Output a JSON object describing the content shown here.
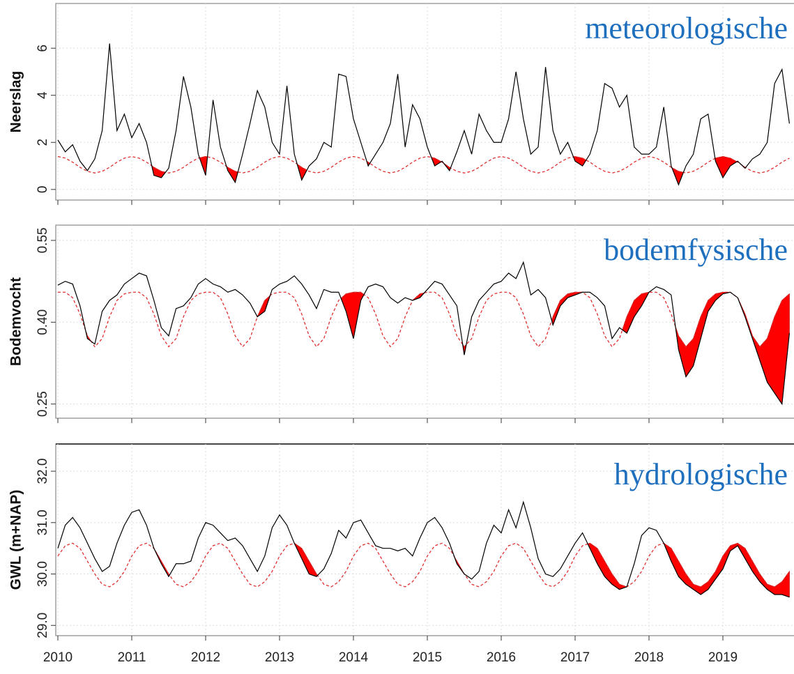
{
  "chart_data": [
    {
      "type": "line",
      "ylabel": "Neerslag",
      "annotation": "meteorologische",
      "grid": true,
      "xlim": [
        2010,
        2020
      ],
      "ylim": [
        -0.45,
        7.9
      ],
      "yticks": [
        0,
        2,
        4,
        6
      ],
      "x": [
        2010,
        2010.1,
        2010.2,
        2010.3,
        2010.4,
        2010.5,
        2010.6,
        2010.7,
        2010.8,
        2010.9,
        2011,
        2011.1,
        2011.2,
        2011.3,
        2011.4,
        2011.5,
        2011.6,
        2011.7,
        2011.8,
        2011.9,
        2012,
        2012.1,
        2012.2,
        2012.3,
        2012.4,
        2012.5,
        2012.6,
        2012.7,
        2012.8,
        2012.9,
        2013,
        2013.1,
        2013.2,
        2013.3,
        2013.4,
        2013.5,
        2013.6,
        2013.7,
        2013.8,
        2013.9,
        2014,
        2014.1,
        2014.2,
        2014.3,
        2014.4,
        2014.5,
        2014.6,
        2014.7,
        2014.8,
        2014.9,
        2015,
        2015.1,
        2015.2,
        2015.3,
        2015.4,
        2015.5,
        2015.6,
        2015.7,
        2015.8,
        2015.9,
        2016,
        2016.1,
        2016.2,
        2016.3,
        2016.4,
        2016.5,
        2016.6,
        2016.7,
        2016.8,
        2016.9,
        2017,
        2017.1,
        2017.2,
        2017.3,
        2017.4,
        2017.5,
        2017.6,
        2017.7,
        2017.8,
        2017.9,
        2018,
        2018.1,
        2018.2,
        2018.3,
        2018.4,
        2018.5,
        2018.6,
        2018.7,
        2018.8,
        2018.9,
        2019,
        2019.1,
        2019.2,
        2019.3,
        2019.4,
        2019.5,
        2019.6,
        2019.7,
        2019.8,
        2019.9
      ],
      "series": [
        {
          "color": "#000000",
          "values": [
            2.1,
            1.6,
            1.9,
            1.2,
            0.8,
            1.3,
            2.5,
            6.2,
            2.5,
            3.2,
            2.2,
            2.8,
            2.0,
            0.6,
            0.5,
            0.9,
            2.5,
            4.8,
            3.5,
            1.5,
            0.6,
            3.8,
            1.8,
            0.8,
            0.3,
            1.5,
            2.8,
            4.2,
            3.5,
            2.0,
            1.5,
            4.4,
            1.5,
            0.4,
            1.0,
            1.3,
            2.0,
            1.8,
            4.9,
            4.8,
            3.0,
            2.0,
            1.0,
            1.5,
            2.0,
            2.8,
            4.9,
            1.8,
            3.6,
            3.0,
            1.8,
            1.0,
            1.2,
            0.8,
            1.6,
            2.5,
            1.5,
            3.2,
            2.5,
            2.0,
            2.0,
            3.0,
            5.0,
            3.0,
            1.5,
            1.8,
            5.2,
            2.5,
            1.5,
            2.0,
            1.2,
            1.0,
            1.5,
            2.5,
            4.5,
            4.3,
            3.5,
            4.0,
            1.8,
            1.5,
            1.5,
            1.8,
            3.5,
            1.0,
            0.2,
            1.0,
            1.5,
            3.0,
            3.2,
            1.2,
            0.5,
            1.0,
            1.2,
            0.9,
            1.3,
            1.5,
            2.0,
            4.5,
            5.1,
            2.8
          ]
        },
        {
          "color": "#e03030",
          "dashed": true,
          "values": [
            1.4,
            1.33,
            1.16,
            0.94,
            0.77,
            0.7,
            0.77,
            0.94,
            1.16,
            1.33,
            1.4,
            1.33,
            1.16,
            0.94,
            0.77,
            0.7,
            0.77,
            0.94,
            1.16,
            1.33,
            1.4,
            1.33,
            1.16,
            0.94,
            0.77,
            0.7,
            0.77,
            0.94,
            1.16,
            1.33,
            1.4,
            1.33,
            1.16,
            0.94,
            0.77,
            0.7,
            0.77,
            0.94,
            1.16,
            1.33,
            1.4,
            1.33,
            1.16,
            0.94,
            0.77,
            0.7,
            0.77,
            0.94,
            1.16,
            1.33,
            1.4,
            1.33,
            1.16,
            0.94,
            0.77,
            0.7,
            0.77,
            0.94,
            1.16,
            1.33,
            1.4,
            1.33,
            1.16,
            0.94,
            0.77,
            0.7,
            0.77,
            0.94,
            1.16,
            1.33,
            1.4,
            1.33,
            1.16,
            0.94,
            0.77,
            0.7,
            0.77,
            0.94,
            1.16,
            1.33,
            1.4,
            1.33,
            1.16,
            0.94,
            0.77,
            0.7,
            0.77,
            0.94,
            1.16,
            1.33,
            1.4,
            1.33,
            1.16,
            0.94,
            0.77,
            0.7,
            0.77,
            0.94,
            1.16,
            1.33
          ]
        }
      ]
    },
    {
      "type": "line",
      "ylabel": "Bodemvocht",
      "annotation": "bodemfysische",
      "grid": true,
      "xlim": [
        2010,
        2020
      ],
      "ylim": [
        0.224,
        0.578
      ],
      "yticks": [
        0.25,
        {
          "value": 0.4,
          "label": "0.40"
        },
        0.55
      ],
      "x": [
        2010,
        2010.1,
        2010.2,
        2010.3,
        2010.4,
        2010.5,
        2010.6,
        2010.7,
        2010.8,
        2010.9,
        2011,
        2011.1,
        2011.2,
        2011.3,
        2011.4,
        2011.5,
        2011.6,
        2011.7,
        2011.8,
        2011.9,
        2012,
        2012.1,
        2012.2,
        2012.3,
        2012.4,
        2012.5,
        2012.6,
        2012.7,
        2012.8,
        2012.9,
        2013,
        2013.1,
        2013.2,
        2013.3,
        2013.4,
        2013.5,
        2013.6,
        2013.7,
        2013.8,
        2013.9,
        2014,
        2014.1,
        2014.2,
        2014.3,
        2014.4,
        2014.5,
        2014.6,
        2014.7,
        2014.8,
        2014.9,
        2015,
        2015.1,
        2015.2,
        2015.3,
        2015.4,
        2015.5,
        2015.6,
        2015.7,
        2015.8,
        2015.9,
        2016,
        2016.1,
        2016.2,
        2016.3,
        2016.4,
        2016.5,
        2016.6,
        2016.7,
        2016.8,
        2016.9,
        2017,
        2017.1,
        2017.2,
        2017.3,
        2017.4,
        2017.5,
        2017.6,
        2017.7,
        2017.8,
        2017.9,
        2018,
        2018.1,
        2018.2,
        2018.3,
        2018.4,
        2018.5,
        2018.6,
        2018.7,
        2018.8,
        2018.9,
        2019,
        2019.1,
        2019.2,
        2019.3,
        2019.4,
        2019.5,
        2019.6,
        2019.7,
        2019.8,
        2019.9
      ],
      "series": [
        {
          "color": "#000000",
          "values": [
            0.468,
            0.475,
            0.47,
            0.43,
            0.37,
            0.36,
            0.42,
            0.44,
            0.45,
            0.47,
            0.48,
            0.49,
            0.485,
            0.44,
            0.39,
            0.375,
            0.425,
            0.43,
            0.445,
            0.47,
            0.48,
            0.47,
            0.465,
            0.455,
            0.46,
            0.45,
            0.435,
            0.41,
            0.42,
            0.46,
            0.47,
            0.475,
            0.485,
            0.47,
            0.45,
            0.425,
            0.46,
            0.455,
            0.455,
            0.42,
            0.37,
            0.44,
            0.465,
            0.47,
            0.465,
            0.445,
            0.435,
            0.445,
            0.44,
            0.445,
            0.46,
            0.475,
            0.47,
            0.45,
            0.43,
            0.34,
            0.41,
            0.44,
            0.455,
            0.47,
            0.475,
            0.49,
            0.48,
            0.51,
            0.45,
            0.46,
            0.445,
            0.395,
            0.43,
            0.445,
            0.45,
            0.455,
            0.455,
            0.445,
            0.43,
            0.37,
            0.39,
            0.38,
            0.41,
            0.43,
            0.455,
            0.465,
            0.46,
            0.45,
            0.35,
            0.3,
            0.32,
            0.37,
            0.42,
            0.44,
            0.452,
            0.455,
            0.445,
            0.41,
            0.37,
            0.33,
            0.29,
            0.27,
            0.25,
            0.38
          ]
        },
        {
          "color": "#e03030",
          "dashed": true,
          "values": [
            0.455,
            0.455,
            0.445,
            0.415,
            0.375,
            0.355,
            0.37,
            0.41,
            0.44,
            0.452,
            0.455,
            0.455,
            0.445,
            0.415,
            0.375,
            0.355,
            0.37,
            0.41,
            0.44,
            0.452,
            0.455,
            0.455,
            0.445,
            0.415,
            0.375,
            0.355,
            0.37,
            0.41,
            0.44,
            0.452,
            0.455,
            0.455,
            0.445,
            0.415,
            0.375,
            0.355,
            0.37,
            0.41,
            0.44,
            0.452,
            0.455,
            0.455,
            0.445,
            0.415,
            0.375,
            0.355,
            0.37,
            0.41,
            0.44,
            0.452,
            0.455,
            0.455,
            0.445,
            0.415,
            0.375,
            0.355,
            0.37,
            0.41,
            0.44,
            0.452,
            0.455,
            0.455,
            0.445,
            0.415,
            0.375,
            0.355,
            0.37,
            0.41,
            0.44,
            0.452,
            0.455,
            0.455,
            0.445,
            0.415,
            0.375,
            0.355,
            0.37,
            0.41,
            0.44,
            0.452,
            0.455,
            0.455,
            0.445,
            0.415,
            0.375,
            0.355,
            0.37,
            0.41,
            0.44,
            0.452,
            0.455,
            0.455,
            0.445,
            0.415,
            0.375,
            0.355,
            0.37,
            0.41,
            0.44,
            0.452
          ]
        }
      ]
    },
    {
      "type": "line",
      "ylabel": "GWL (m+NAP)",
      "annotation": "hydrologische",
      "grid": true,
      "xlim": [
        2010,
        2020
      ],
      "ylim": [
        28.8,
        32.53
      ],
      "yticks": [
        {
          "value": 29,
          "label": "29.0"
        },
        {
          "value": 30,
          "label": "30.0"
        },
        {
          "value": 31,
          "label": "31.0"
        },
        {
          "value": 32,
          "label": "32.0"
        }
      ],
      "xticks": [
        2010,
        2011,
        2012,
        2013,
        2014,
        2015,
        2016,
        2017,
        2018,
        2019
      ],
      "x": [
        2010,
        2010.1,
        2010.2,
        2010.3,
        2010.4,
        2010.5,
        2010.6,
        2010.7,
        2010.8,
        2010.9,
        2011,
        2011.1,
        2011.2,
        2011.3,
        2011.4,
        2011.5,
        2011.6,
        2011.7,
        2011.8,
        2011.9,
        2012,
        2012.1,
        2012.2,
        2012.3,
        2012.4,
        2012.5,
        2012.6,
        2012.7,
        2012.8,
        2012.9,
        2013,
        2013.1,
        2013.2,
        2013.3,
        2013.4,
        2013.5,
        2013.6,
        2013.7,
        2013.8,
        2013.9,
        2014,
        2014.1,
        2014.2,
        2014.3,
        2014.4,
        2014.5,
        2014.6,
        2014.7,
        2014.8,
        2014.9,
        2015,
        2015.1,
        2015.2,
        2015.3,
        2015.4,
        2015.5,
        2015.6,
        2015.7,
        2015.8,
        2015.9,
        2016,
        2016.1,
        2016.2,
        2016.3,
        2016.4,
        2016.5,
        2016.6,
        2016.7,
        2016.8,
        2016.9,
        2017,
        2017.1,
        2017.2,
        2017.3,
        2017.4,
        2017.5,
        2017.6,
        2017.7,
        2017.8,
        2017.9,
        2018,
        2018.1,
        2018.2,
        2018.3,
        2018.4,
        2018.5,
        2018.6,
        2018.7,
        2018.8,
        2018.9,
        2019,
        2019.1,
        2019.2,
        2019.3,
        2019.4,
        2019.5,
        2019.6,
        2019.7,
        2019.8,
        2019.9
      ],
      "series": [
        {
          "color": "#000000",
          "values": [
            30.5,
            30.95,
            31.1,
            30.9,
            30.6,
            30.3,
            30.05,
            30.15,
            30.6,
            30.95,
            31.2,
            31.25,
            30.95,
            30.5,
            30.2,
            29.95,
            30.2,
            30.2,
            30.25,
            30.7,
            31.0,
            30.95,
            30.8,
            30.65,
            30.7,
            30.55,
            30.3,
            30.05,
            30.35,
            30.9,
            31.15,
            30.95,
            30.6,
            30.3,
            30.0,
            29.95,
            30.1,
            30.4,
            30.85,
            30.7,
            31.0,
            31.05,
            30.8,
            30.55,
            30.5,
            30.5,
            30.45,
            30.5,
            30.35,
            30.7,
            31.0,
            31.1,
            30.9,
            30.6,
            30.2,
            30.0,
            29.9,
            30.05,
            30.6,
            30.95,
            30.8,
            31.25,
            30.9,
            31.4,
            30.9,
            30.3,
            30.0,
            29.95,
            30.1,
            30.35,
            30.6,
            30.8,
            30.5,
            30.2,
            29.95,
            29.8,
            29.7,
            29.75,
            30.2,
            30.75,
            30.9,
            30.85,
            30.6,
            30.25,
            29.95,
            29.8,
            29.7,
            29.6,
            29.7,
            29.9,
            30.1,
            30.45,
            30.55,
            30.3,
            30.05,
            29.85,
            29.7,
            29.6,
            29.6,
            29.55
          ]
        },
        {
          "color": "#e03030",
          "dashed": true,
          "values": [
            30.35,
            30.55,
            30.6,
            30.5,
            30.25,
            30.0,
            29.8,
            29.75,
            29.85,
            30.05,
            30.35,
            30.55,
            30.6,
            30.5,
            30.25,
            30.0,
            29.8,
            29.75,
            29.85,
            30.05,
            30.35,
            30.55,
            30.6,
            30.5,
            30.25,
            30.0,
            29.8,
            29.75,
            29.85,
            30.05,
            30.35,
            30.55,
            30.6,
            30.5,
            30.25,
            30.0,
            29.8,
            29.75,
            29.85,
            30.05,
            30.35,
            30.55,
            30.6,
            30.5,
            30.25,
            30.0,
            29.8,
            29.75,
            29.85,
            30.05,
            30.35,
            30.55,
            30.6,
            30.5,
            30.25,
            30.0,
            29.8,
            29.75,
            29.85,
            30.05,
            30.35,
            30.55,
            30.6,
            30.5,
            30.25,
            30.0,
            29.8,
            29.75,
            29.85,
            30.05,
            30.35,
            30.55,
            30.6,
            30.5,
            30.25,
            30.0,
            29.8,
            29.75,
            29.85,
            30.05,
            30.35,
            30.55,
            30.6,
            30.5,
            30.25,
            30.0,
            29.8,
            29.75,
            29.85,
            30.05,
            30.35,
            30.55,
            30.6,
            30.5,
            30.25,
            30.0,
            29.8,
            29.75,
            29.85,
            30.05
          ]
        }
      ]
    }
  ]
}
